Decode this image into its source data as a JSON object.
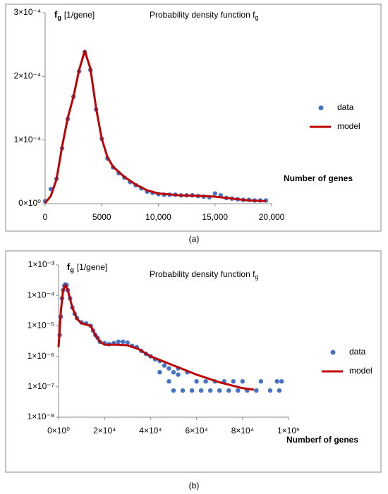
{
  "chart_data": [
    {
      "type": "scatter",
      "caption": "(a)",
      "title": {
        "text": "Probability density function f",
        "subscript": "g"
      },
      "ylabel": {
        "symbol": "f",
        "subscript": "g",
        "unit": "[1/gene]"
      },
      "xlabel": "Number of genes",
      "xlim": [
        0,
        20000
      ],
      "xticks": [
        0,
        5000,
        {
          "value": 10000,
          "label": "10,000"
        },
        {
          "value": 15000,
          "label": "15,000"
        },
        {
          "value": 20000,
          "label": "20,000"
        }
      ],
      "ylim": [
        0,
        0.0003
      ],
      "yticks": [
        {
          "value": 0,
          "label": "0×10⁰"
        },
        {
          "value": 0.0001,
          "label": "1×10⁻⁴"
        },
        {
          "value": 0.0002,
          "label": "2×10⁻⁴"
        },
        {
          "value": 0.0003,
          "label": "3×10⁻⁴"
        }
      ],
      "log_y": false,
      "legend": "right",
      "series": [
        {
          "name": "data",
          "mark": "dot",
          "color": "#4472c4",
          "x": [
            0,
            500,
            1000,
            1500,
            2000,
            2500,
            3000,
            3500,
            4000,
            4500,
            5000,
            5500,
            6000,
            6500,
            7000,
            7500,
            8000,
            8500,
            9000,
            9500,
            10000,
            10500,
            11000,
            11500,
            12000,
            12500,
            13000,
            13500,
            14000,
            14500,
            15000,
            15500,
            16000,
            16500,
            17000,
            17500,
            18000,
            18500,
            19000,
            19500
          ],
          "values": [
            4e-06,
            2.3e-05,
            3.9e-05,
            8.7e-05,
            0.000133,
            0.000168,
            0.000208,
            0.000238,
            0.00021,
            0.000148,
            0.000102,
            7.1e-05,
            5.7e-05,
            4.8e-05,
            4.1e-05,
            3.4e-05,
            2.9e-05,
            2.4e-05,
            1.9e-05,
            1.7e-05,
            1.5e-05,
            1.4e-05,
            1.4e-05,
            1.4e-05,
            1.3e-05,
            1.3e-05,
            1.3e-05,
            1.2e-05,
            1.1e-05,
            1e-05,
            1.6e-05,
            1.3e-05,
            9e-06,
            8e-06,
            7e-06,
            6e-06,
            6e-06,
            5e-06,
            5e-06,
            5e-06
          ]
        },
        {
          "name": "model",
          "mark": "line",
          "color": "#c00000",
          "x": [
            0,
            500,
            1000,
            1500,
            2000,
            2500,
            3000,
            3500,
            4000,
            4500,
            5000,
            5500,
            6000,
            7000,
            8000,
            9000,
            10000,
            12000,
            14000,
            15000,
            16000,
            17000,
            18000,
            19500
          ],
          "values": [
            1e-06,
            1.2e-05,
            3.8e-05,
            9e-05,
            0.000135,
            0.000168,
            0.00021,
            0.00024,
            0.000212,
            0.00015,
            0.000102,
            7.3e-05,
            5.8e-05,
            4.2e-05,
            3e-05,
            2.1e-05,
            1.6e-05,
            1.3e-05,
            1.2e-05,
            1.1e-05,
            9e-06,
            7e-06,
            5e-06,
            4e-06
          ]
        }
      ]
    },
    {
      "type": "scatter",
      "caption": "(b)",
      "title": {
        "text": "Probability density function f",
        "subscript": "g"
      },
      "ylabel": {
        "symbol": "f",
        "subscript": "g",
        "unit": "[1/gene]"
      },
      "xlabel": "Numberf of genes",
      "xlim": [
        0,
        100000
      ],
      "xticks": [
        {
          "value": 0,
          "label": "0×10⁰"
        },
        {
          "value": 20000,
          "label": "2×10⁴"
        },
        {
          "value": 40000,
          "label": "4×10⁴"
        },
        {
          "value": 60000,
          "label": "6×10⁴"
        },
        {
          "value": 80000,
          "label": "8×10⁴"
        },
        {
          "value": 100000,
          "label": "1×10⁵"
        }
      ],
      "ylim": [
        1e-08,
        0.001
      ],
      "yticks": [
        {
          "value": 1e-08,
          "label": "1×10⁻⁸"
        },
        {
          "value": 1e-07,
          "label": "1×10⁻⁷"
        },
        {
          "value": 1e-06,
          "label": "1×10⁻⁶"
        },
        {
          "value": 1e-05,
          "label": "1×10⁻⁵"
        },
        {
          "value": 0.0001,
          "label": "1×10⁻⁴"
        },
        {
          "value": 0.001,
          "label": "1×10⁻³"
        }
      ],
      "log_y": true,
      "legend": "right",
      "series": [
        {
          "name": "data",
          "mark": "dot",
          "color": "#4472c4",
          "x": [
            500,
            1000,
            1500,
            2000,
            2500,
            3000,
            3500,
            4000,
            5000,
            6000,
            7000,
            8000,
            10000,
            12000,
            14000,
            15000,
            16000,
            17000,
            18000,
            20000,
            22000,
            24000,
            26000,
            28000,
            30000,
            32000,
            34000,
            36000,
            38000,
            40000,
            42000,
            44000,
            46000,
            48000,
            50000,
            52000,
            44000,
            48000,
            52000,
            56000,
            60000,
            64000,
            68000,
            72000,
            76000,
            80000,
            88000,
            95000,
            97000,
            50000,
            54000,
            58000,
            62000,
            66000,
            70000,
            74000,
            78000,
            82000,
            86000,
            92000,
            96000
          ],
          "values": [
            5e-06,
            2e-05,
            8e-05,
            0.00015,
            0.00021,
            0.00023,
            0.00022,
            0.00015,
            8e-05,
            4e-05,
            2.5e-05,
            1.8e-05,
            1.3e-05,
            1.2e-05,
            1e-05,
            7e-06,
            5e-06,
            4e-06,
            3e-06,
            2.7e-06,
            2.5e-06,
            2.7e-06,
            3e-06,
            3e-06,
            2.8e-06,
            2.2e-06,
            2e-06,
            1.5e-06,
            1.2e-06,
            1e-06,
            8e-07,
            7e-07,
            5e-07,
            4e-07,
            3e-07,
            2.5e-07,
            3e-07,
            1.5e-07,
            4e-07,
            3e-07,
            1.5e-07,
            1.5e-07,
            1.5e-07,
            1.5e-07,
            1.5e-07,
            1.5e-07,
            1.5e-07,
            1.5e-07,
            1.5e-07,
            7.5e-08,
            7.5e-08,
            7.5e-08,
            7.5e-08,
            7.5e-08,
            7.5e-08,
            7.5e-08,
            7.5e-08,
            7.5e-08,
            7.5e-08,
            7.5e-08,
            7.5e-08
          ]
        },
        {
          "name": "model",
          "mark": "line",
          "color": "#c00000",
          "x": [
            0,
            1000,
            2000,
            3000,
            4000,
            6000,
            8000,
            10000,
            14000,
            16000,
            18000,
            20000,
            25000,
            30000,
            35000,
            40000,
            50000,
            60000,
            70000,
            80000,
            85000
          ],
          "values": [
            2e-06,
            3e-05,
            0.00015,
            0.00022,
            0.00015,
            4e-05,
            1.7e-05,
            1.2e-05,
            1e-05,
            5e-06,
            3e-06,
            2.4e-06,
            2.4e-06,
            2.3e-06,
            1.7e-06,
            1e-06,
            5e-07,
            2.5e-07,
            1.4e-07,
            9e-08,
            8e-08
          ]
        }
      ]
    }
  ]
}
